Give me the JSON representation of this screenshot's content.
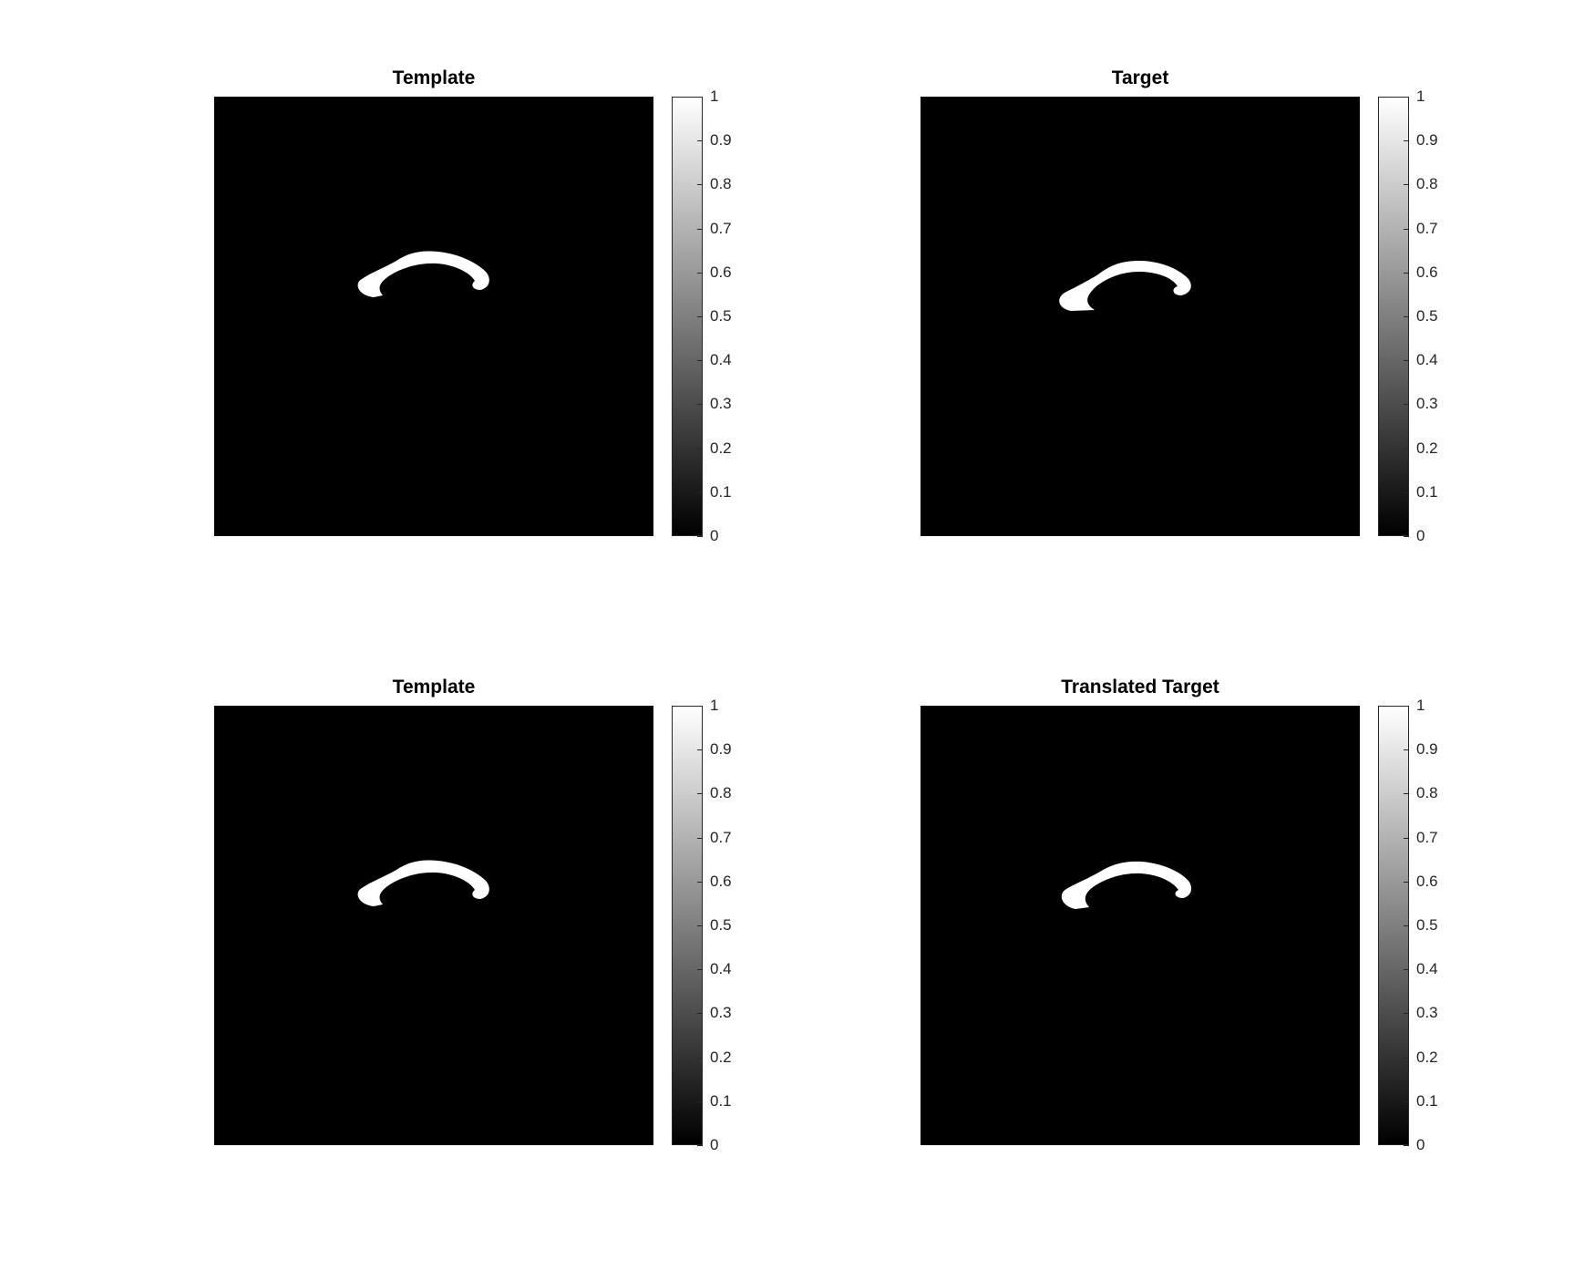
{
  "chart_data": [
    {
      "type": "heatmap",
      "title": "Template",
      "colormap": "gray",
      "clim": [
        0,
        1
      ],
      "colorbar_ticks": [
        "0",
        "0.1",
        "0.2",
        "0.3",
        "0.4",
        "0.5",
        "0.6",
        "0.7",
        "0.8",
        "0.9",
        "1"
      ],
      "shape": "arc",
      "tilt": "none"
    },
    {
      "type": "heatmap",
      "title": "Target",
      "colormap": "gray",
      "clim": [
        0,
        1
      ],
      "colorbar_ticks": [
        "0",
        "0.1",
        "0.2",
        "0.3",
        "0.4",
        "0.5",
        "0.6",
        "0.7",
        "0.8",
        "0.9",
        "1"
      ],
      "shape": "arc",
      "tilt": "left-lower"
    },
    {
      "type": "heatmap",
      "title": "Template",
      "colormap": "gray",
      "clim": [
        0,
        1
      ],
      "colorbar_ticks": [
        "0",
        "0.1",
        "0.2",
        "0.3",
        "0.4",
        "0.5",
        "0.6",
        "0.7",
        "0.8",
        "0.9",
        "1"
      ],
      "shape": "arc",
      "tilt": "none"
    },
    {
      "type": "heatmap",
      "title": "Translated Target",
      "colormap": "gray",
      "clim": [
        0,
        1
      ],
      "colorbar_ticks": [
        "0",
        "0.1",
        "0.2",
        "0.3",
        "0.4",
        "0.5",
        "0.6",
        "0.7",
        "0.8",
        "0.9",
        "1"
      ],
      "shape": "arc",
      "tilt": "none"
    }
  ]
}
